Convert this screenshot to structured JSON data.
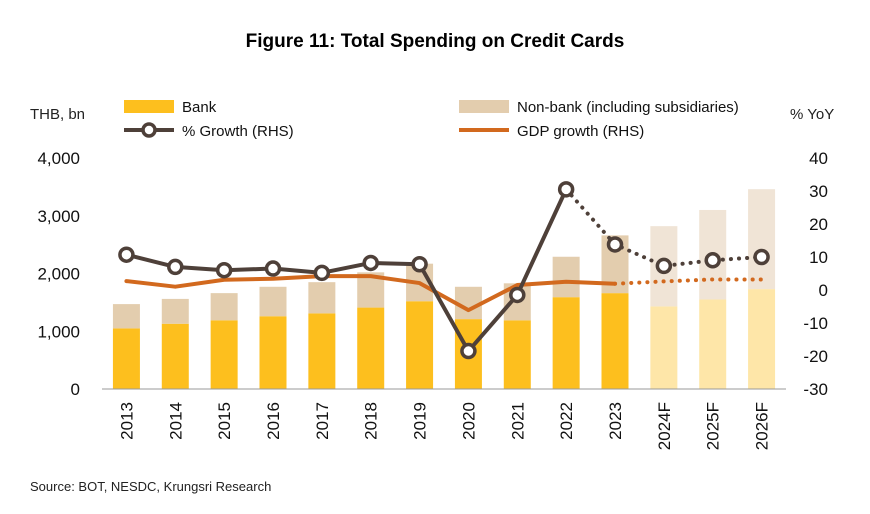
{
  "title": "Figure 11: Total Spending on Credit Cards",
  "source": "Source: BOT, NESDC, Krungsri Research",
  "left_axis_unit": "THB, bn",
  "right_axis_unit": "% YoY",
  "legend": {
    "bank": "Bank",
    "nonbank": "Non-bank (including subsidiaries)",
    "growth": "% Growth (RHS)",
    "gdp": "GDP growth (RHS)"
  },
  "colors": {
    "bank": "#FDBF1E",
    "bank_forecast": "#FEE6A8",
    "nonbank": "#E3CDAE",
    "nonbank_forecast": "#F0E4D6",
    "growth": "#4E4039",
    "gdp": "#D2691E"
  },
  "chart_data": {
    "type": "bar",
    "categories": [
      "2013",
      "2014",
      "2015",
      "2016",
      "2017",
      "2018",
      "2019",
      "2020",
      "2021",
      "2022",
      "2023",
      "2024F",
      "2025F",
      "2026F"
    ],
    "forecast_from_index": 11,
    "left_axis": {
      "ylim": [
        0,
        4000
      ],
      "ticks": [
        "0",
        "1,000",
        "2,000",
        "3,000",
        "4,000"
      ],
      "tick_values": [
        0,
        1000,
        2000,
        3000,
        4000
      ]
    },
    "right_axis": {
      "ylim": [
        -30,
        40
      ],
      "ticks": [
        "-30",
        "-20",
        "-10",
        "0",
        "10",
        "20",
        "30",
        "40"
      ],
      "tick_values": [
        -30,
        -20,
        -10,
        0,
        10,
        20,
        30,
        40
      ]
    },
    "series": [
      {
        "name": "Bank",
        "axis": "left",
        "kind": "stacked-bar",
        "values": [
          1050,
          1130,
          1190,
          1260,
          1310,
          1410,
          1520,
          1210,
          1190,
          1590,
          1660,
          1430,
          1550,
          1730
        ]
      },
      {
        "name": "Non-bank (including subsidiaries)",
        "axis": "left",
        "kind": "stacked-bar",
        "values": [
          420,
          430,
          470,
          510,
          540,
          610,
          650,
          560,
          640,
          700,
          1000,
          1390,
          1550,
          1730
        ]
      },
      {
        "name": "% Growth (RHS)",
        "axis": "right",
        "kind": "line-marker",
        "values": [
          10.7,
          7.0,
          6.0,
          6.5,
          5.2,
          8.2,
          7.8,
          -18.5,
          -1.5,
          30.5,
          13.8,
          7.3,
          9.0,
          10.0
        ]
      },
      {
        "name": "GDP growth (RHS)",
        "axis": "right",
        "kind": "line",
        "values": [
          2.7,
          1.0,
          3.1,
          3.4,
          4.2,
          4.2,
          2.1,
          -6.1,
          1.5,
          2.5,
          1.9,
          2.6,
          3.2,
          3.2
        ]
      }
    ]
  }
}
